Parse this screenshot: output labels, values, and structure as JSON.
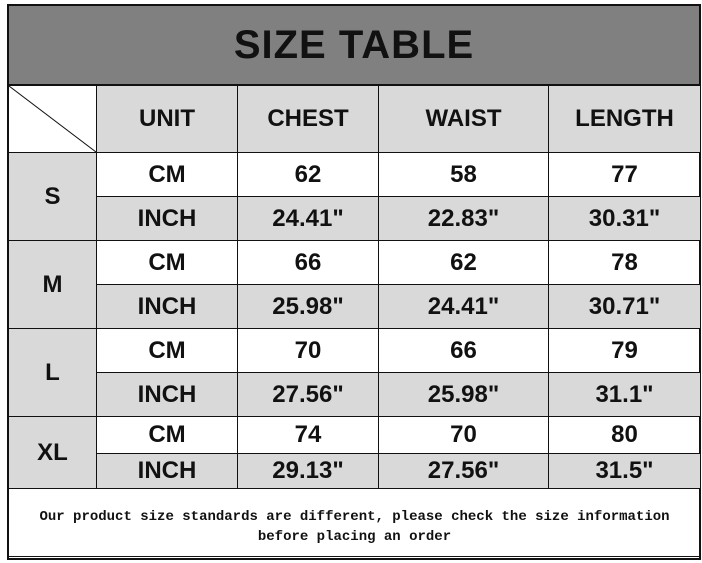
{
  "title": "SIZE TABLE",
  "headers": [
    "UNIT",
    "CHEST",
    "WAIST",
    "LENGTH"
  ],
  "sizes": [
    {
      "size": "S",
      "cm": {
        "unit": "CM",
        "chest": "62",
        "waist": "58",
        "length": "77"
      },
      "inch": {
        "unit": "INCH",
        "chest": "24.41\"",
        "waist": "22.83\"",
        "length": "30.31\""
      }
    },
    {
      "size": "M",
      "cm": {
        "unit": "CM",
        "chest": "66",
        "waist": "62",
        "length": "78"
      },
      "inch": {
        "unit": "INCH",
        "chest": "25.98\"",
        "waist": "24.41\"",
        "length": "30.71\""
      }
    },
    {
      "size": "L",
      "cm": {
        "unit": "CM",
        "chest": "70",
        "waist": "66",
        "length": "79"
      },
      "inch": {
        "unit": "INCH",
        "chest": "27.56\"",
        "waist": "25.98\"",
        "length": "31.1\""
      }
    },
    {
      "size": "XL",
      "cm": {
        "unit": "CM",
        "chest": "74",
        "waist": "70",
        "length": "80"
      },
      "inch": {
        "unit": "INCH",
        "chest": "29.13\"",
        "waist": "27.56\"",
        "length": "31.5\""
      }
    }
  ],
  "note_line1": "Our product size standards are different, please check the size information",
  "note_line2": "before placing an order",
  "colors": {
    "title_bg": "#808080",
    "cell_grey": "#d9d9d9"
  }
}
